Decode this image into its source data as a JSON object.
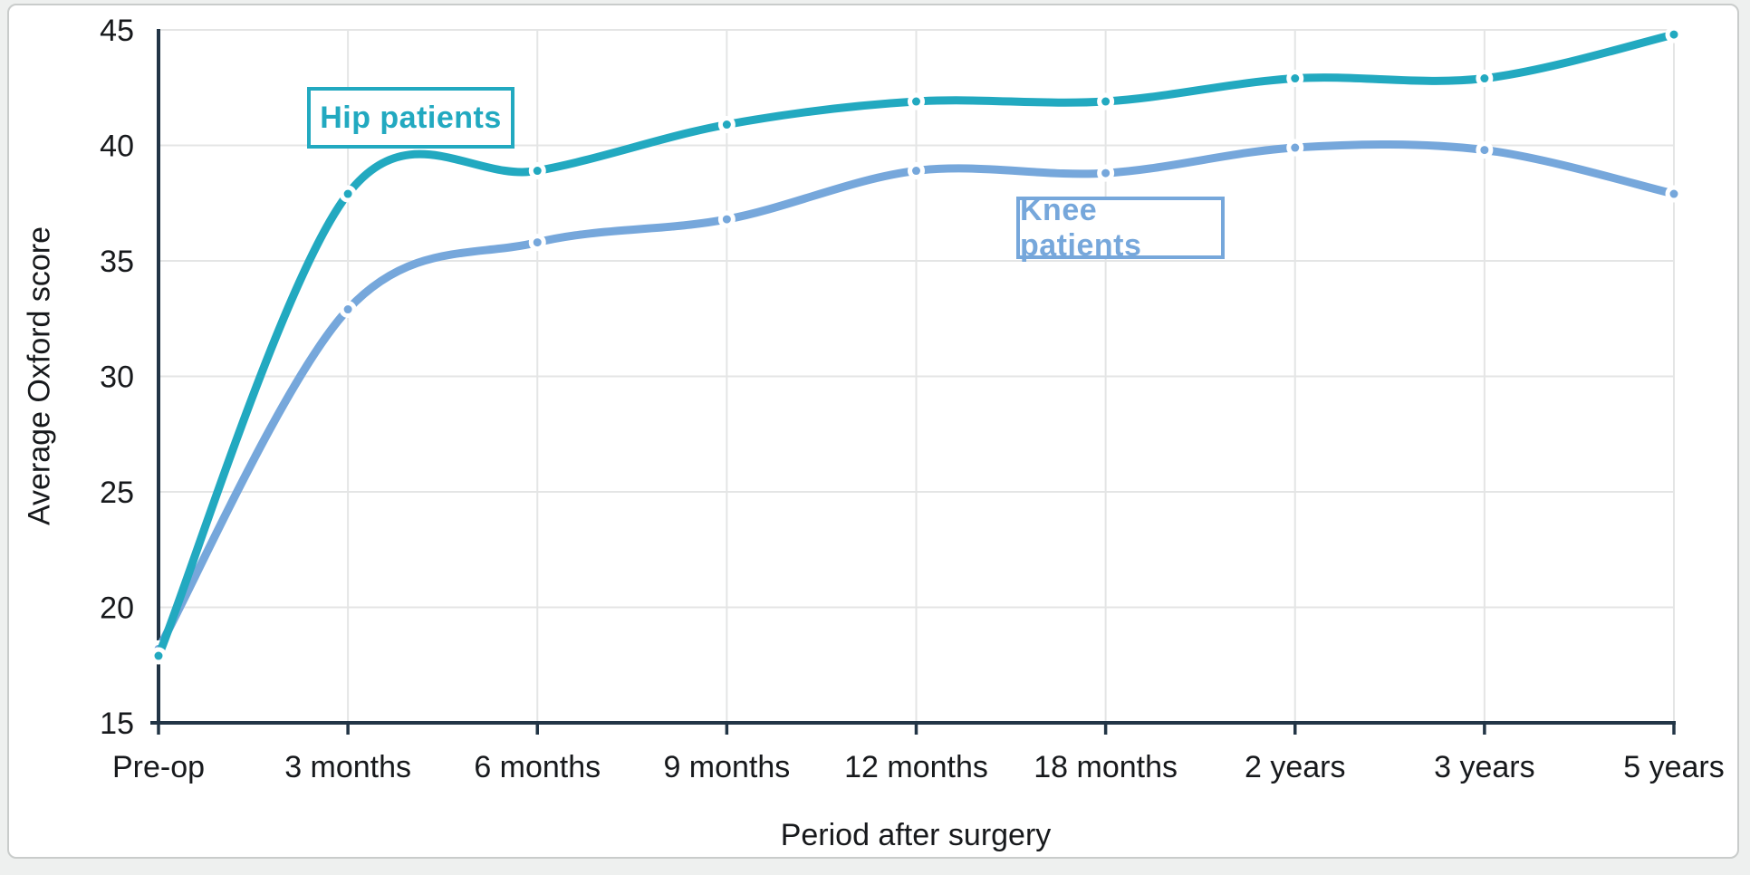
{
  "chart_data": {
    "type": "line",
    "title": "",
    "xlabel": "Period after surgery",
    "ylabel": "Average Oxford score",
    "categories": [
      "Pre-op",
      "3 months",
      "6 months",
      "9 months",
      "12 months",
      "18 months",
      "2 years",
      "3 years",
      "5 years"
    ],
    "series": [
      {
        "name": "Hip patients",
        "color": "#22a9c0",
        "values": [
          17.9,
          37.9,
          38.9,
          40.9,
          41.9,
          41.9,
          42.9,
          42.9,
          44.8
        ]
      },
      {
        "name": "Knee patients",
        "color": "#76a7db",
        "values": [
          18.2,
          32.9,
          35.8,
          36.8,
          38.9,
          38.8,
          39.9,
          39.8,
          37.9
        ]
      }
    ],
    "ylim": [
      15,
      45
    ],
    "yticks": [
      15,
      20,
      25,
      30,
      35,
      40,
      45
    ],
    "grid": "both",
    "line_style": "smooth-spline-with-round-markers",
    "legend_position": "boxed-labels-inside-plot"
  },
  "colors": {
    "axis": "#223546",
    "grid": "#e4e5e5",
    "tick_text": "#17191c",
    "marker_halo": "#ffffff",
    "plot_background": "#ffffff",
    "page_background": "#eef0ef"
  }
}
